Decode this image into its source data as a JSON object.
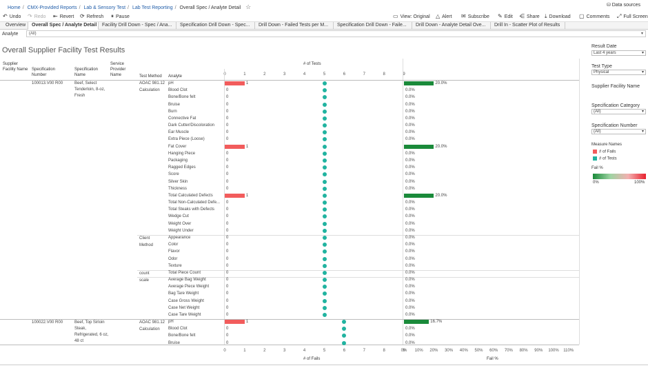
{
  "breadcrumb": [
    "Home",
    "CMX-Provided Reports",
    "Lab & Sensory Test",
    "Lab Test Reporting",
    "Overall Spec / Analyte Detail"
  ],
  "data_sources_label": "Data sources",
  "toolbar": {
    "undo": "Undo",
    "redo": "Redo",
    "revert": "Revert",
    "refresh": "Refresh",
    "pause": "Pause",
    "view": "View: Original",
    "alert": "Alert",
    "subscribe": "Subscribe",
    "edit": "Edit",
    "share": "Share",
    "download": "Download",
    "comments": "Comments",
    "fullscreen": "Full Screen"
  },
  "tabs": [
    {
      "label": "Overview"
    },
    {
      "label": "Overall Spec / Analyte Detail"
    },
    {
      "label": "Facility Drill Down - Spec / Ana..."
    },
    {
      "label": "Specification Drill Down - Spec..."
    },
    {
      "label": "Drill Down - Failed Tests per M..."
    },
    {
      "label": "Specification Drill Down - Faile..."
    },
    {
      "label": "Drill Down - Analyte Detail Ove..."
    },
    {
      "label": "Drill In - Scatter Plot of Results"
    }
  ],
  "analyte_filter": {
    "label": "Analyte",
    "value": "(All)"
  },
  "page_title": "Overall Supplier Facility Test Results",
  "columns": {
    "supplier": "Supplier Facility Name",
    "spec_number": "Specification Number",
    "spec_name": "Specification Name",
    "provider": "Service Provider Name",
    "method": "Test Method",
    "analyte": "Analyte"
  },
  "axes": {
    "tests_title": "# of Tests",
    "fails_title": "# of Fails",
    "failpct_title": "Fail %",
    "count_ticks": [
      "0",
      "1",
      "2",
      "3",
      "4",
      "5",
      "6",
      "7",
      "8",
      "9"
    ],
    "pct_ticks": [
      "0%",
      "10%",
      "20%",
      "30%",
      "40%",
      "50%",
      "60%",
      "70%",
      "80%",
      "90%",
      "100%",
      "110%"
    ]
  },
  "specs": [
    {
      "number": "100013.V00 R00",
      "name": "Beef, Select Tenderloin, 8-oz, Fresh"
    },
    {
      "number": "100022.V00 R00",
      "name": "Beef, Top Sirloin Steak, Refrigerated, 6 oz, 48 ct"
    }
  ],
  "methods": [
    {
      "label": "AOAC 981.12"
    },
    {
      "label": "Calculation"
    },
    {
      "label": "Client Method"
    },
    {
      "label": "count"
    },
    {
      "label": "scale"
    },
    {
      "label": "AOAC 981.12"
    },
    {
      "label": "Calculation"
    }
  ],
  "chart_data": {
    "type": "table",
    "rows": [
      {
        "analyte": "pH",
        "fails": 1,
        "tests": 5,
        "fail_pct": "20.0%",
        "pct": 20
      },
      {
        "analyte": "Blood Clot",
        "fails": 0,
        "tests": 5,
        "fail_pct": "0.0%",
        "pct": 0
      },
      {
        "analyte": "Bone/Bone felt",
        "fails": 0,
        "tests": 5,
        "fail_pct": "0.0%",
        "pct": 0
      },
      {
        "analyte": "Bruise",
        "fails": 0,
        "tests": 5,
        "fail_pct": "0.0%",
        "pct": 0
      },
      {
        "analyte": "Burn",
        "fails": 0,
        "tests": 5,
        "fail_pct": "0.0%",
        "pct": 0
      },
      {
        "analyte": "Connective Fat",
        "fails": 0,
        "tests": 5,
        "fail_pct": "0.0%",
        "pct": 0
      },
      {
        "analyte": "Dark Cutter/Discoloration",
        "fails": 0,
        "tests": 5,
        "fail_pct": "0.0%",
        "pct": 0
      },
      {
        "analyte": "Ear Muscle",
        "fails": 0,
        "tests": 5,
        "fail_pct": "0.0%",
        "pct": 0
      },
      {
        "analyte": "Extra Piece (Loose)",
        "fails": 0,
        "tests": 5,
        "fail_pct": "0.0%",
        "pct": 0
      },
      {
        "analyte": "Fat Cover",
        "fails": 1,
        "tests": 5,
        "fail_pct": "20.0%",
        "pct": 20
      },
      {
        "analyte": "Hanging Piece",
        "fails": 0,
        "tests": 5,
        "fail_pct": "0.0%",
        "pct": 0
      },
      {
        "analyte": "Packaging",
        "fails": 0,
        "tests": 5,
        "fail_pct": "0.0%",
        "pct": 0
      },
      {
        "analyte": "Ragged Edges",
        "fails": 0,
        "tests": 5,
        "fail_pct": "0.0%",
        "pct": 0
      },
      {
        "analyte": "Score",
        "fails": 0,
        "tests": 5,
        "fail_pct": "0.0%",
        "pct": 0
      },
      {
        "analyte": "Silver Skin",
        "fails": 0,
        "tests": 5,
        "fail_pct": "0.0%",
        "pct": 0
      },
      {
        "analyte": "Thickness",
        "fails": 0,
        "tests": 5,
        "fail_pct": "0.0%",
        "pct": 0
      },
      {
        "analyte": "Total Calculated Defects",
        "fails": 1,
        "tests": 5,
        "fail_pct": "20.0%",
        "pct": 20
      },
      {
        "analyte": "Total Non-Calculated Defe...",
        "fails": 0,
        "tests": 5,
        "fail_pct": "0.0%",
        "pct": 0
      },
      {
        "analyte": "Total Steaks with Defects",
        "fails": 0,
        "tests": 5,
        "fail_pct": "0.0%",
        "pct": 0
      },
      {
        "analyte": "Wedge Cut",
        "fails": 0,
        "tests": 5,
        "fail_pct": "0.0%",
        "pct": 0
      },
      {
        "analyte": "Weight Over",
        "fails": 0,
        "tests": 5,
        "fail_pct": "0.0%",
        "pct": 0
      },
      {
        "analyte": "Weight Under",
        "fails": 0,
        "tests": 5,
        "fail_pct": "0.0%",
        "pct": 0
      },
      {
        "analyte": "Appearance",
        "fails": 0,
        "tests": 5,
        "fail_pct": "0.0%",
        "pct": 0
      },
      {
        "analyte": "Color",
        "fails": 0,
        "tests": 5,
        "fail_pct": "0.0%",
        "pct": 0
      },
      {
        "analyte": "Flavor",
        "fails": 0,
        "tests": 5,
        "fail_pct": "0.0%",
        "pct": 0
      },
      {
        "analyte": "Odor",
        "fails": 0,
        "tests": 5,
        "fail_pct": "0.0%",
        "pct": 0
      },
      {
        "analyte": "Texture",
        "fails": 0,
        "tests": 5,
        "fail_pct": "0.0%",
        "pct": 0
      },
      {
        "analyte": "Total Piece Count",
        "fails": 0,
        "tests": 5,
        "fail_pct": "0.0%",
        "pct": 0
      },
      {
        "analyte": "Average Bag Weight",
        "fails": 0,
        "tests": 5,
        "fail_pct": "0.0%",
        "pct": 0
      },
      {
        "analyte": "Average Piece Weight",
        "fails": 0,
        "tests": 5,
        "fail_pct": "0.0%",
        "pct": 0
      },
      {
        "analyte": "Bag Tare Weight",
        "fails": 0,
        "tests": 5,
        "fail_pct": "0.0%",
        "pct": 0
      },
      {
        "analyte": "Case Gross Weight",
        "fails": 0,
        "tests": 5,
        "fail_pct": "0.0%",
        "pct": 0
      },
      {
        "analyte": "Case Net Weight",
        "fails": 0,
        "tests": 5,
        "fail_pct": "0.0%",
        "pct": 0
      },
      {
        "analyte": "Case Tare Weight",
        "fails": 0,
        "tests": 5,
        "fail_pct": "0.0%",
        "pct": 0
      },
      {
        "analyte": "pH",
        "fails": 1,
        "tests": 6,
        "fail_pct": "16.7%",
        "pct": 16.7
      },
      {
        "analyte": "Blood Clot",
        "fails": 0,
        "tests": 6,
        "fail_pct": "0.0%",
        "pct": 0
      },
      {
        "analyte": "Bone/Bone felt",
        "fails": 0,
        "tests": 6,
        "fail_pct": "0.0%",
        "pct": 0
      },
      {
        "analyte": "Bruise",
        "fails": 0,
        "tests": 6,
        "fail_pct": "0.0%",
        "pct": 0
      }
    ],
    "x_count_range": [
      0,
      9
    ],
    "x_pct_range": [
      0,
      110
    ]
  },
  "right_panel": {
    "result_date_label": "Result Date",
    "result_date_value": "Last 4 years",
    "test_type_label": "Test Type",
    "test_type_value": "Physical",
    "supplier_label": "Supplier Facility Name",
    "spec_category_label": "Specification Category",
    "spec_category_value": "(All)",
    "spec_number_label": "Specification Number",
    "spec_number_value": "(All)",
    "measure_names_label": "Measure Names",
    "legend_fails": "# of Fails",
    "legend_tests": "# of Tests",
    "fail_pct_label": "Fail %",
    "grad_min": "0%",
    "grad_max": "100%"
  },
  "colors": {
    "fails": "#f25c5c",
    "tests": "#21b3a0",
    "failpct_bar": "#1a8a3a"
  }
}
